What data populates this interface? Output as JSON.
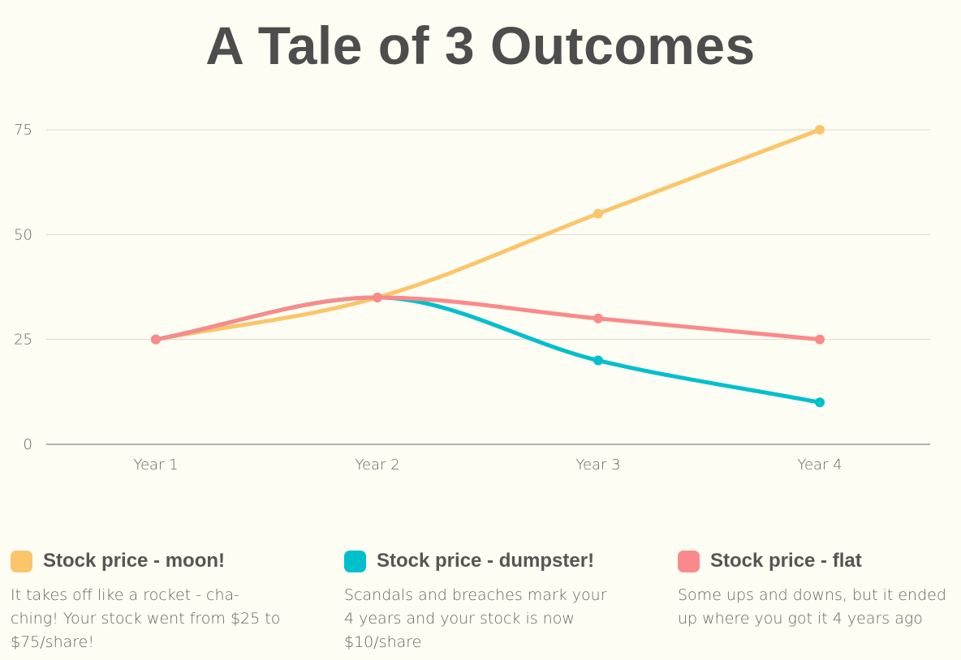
{
  "title": "A Tale of 3 Outcomes",
  "chart_data": {
    "type": "line",
    "categories": [
      "Year 1",
      "Year 2",
      "Year 3",
      "Year 4"
    ],
    "series": [
      {
        "name": "Stock price - moon!",
        "values": [
          25,
          35,
          55,
          75
        ],
        "color": "#fbc56a"
      },
      {
        "name": "Stock price - dumpster!",
        "values": [
          25,
          35,
          20,
          10
        ],
        "color": "#00c0cb"
      },
      {
        "name": "Stock price - flat",
        "values": [
          25,
          35,
          30,
          25
        ],
        "color": "#fa8a8a"
      }
    ],
    "yticks": [
      0,
      25,
      50,
      75
    ],
    "ylim": [
      0,
      75
    ],
    "grid": true,
    "legend_position": "bottom"
  },
  "legend": [
    {
      "name": "Stock price - moon!",
      "color": "#fbc56a",
      "description": "It takes off like a rocket - cha-ching! Your stock went from $25 to $75/share!"
    },
    {
      "name": "Stock price - dumpster!",
      "color": "#00c0cb",
      "description": "Scandals and breaches mark your 4 years and your stock is now $10/share"
    },
    {
      "name": "Stock price - flat",
      "color": "#fa8a8a",
      "description": "Some ups and downs, but it ended up where you got it 4 years ago"
    }
  ]
}
